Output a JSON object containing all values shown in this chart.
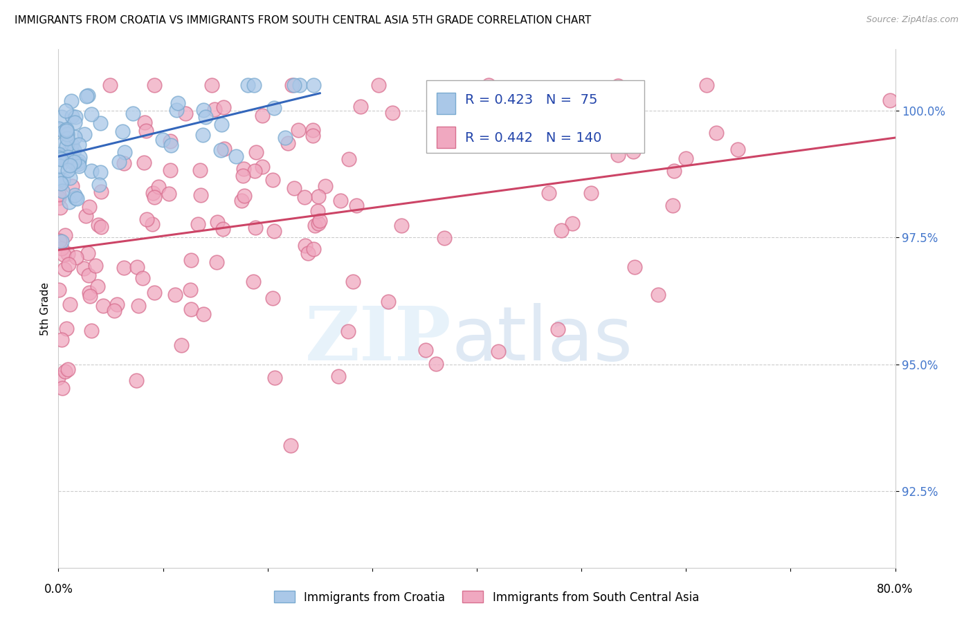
{
  "title": "IMMIGRANTS FROM CROATIA VS IMMIGRANTS FROM SOUTH CENTRAL ASIA 5TH GRADE CORRELATION CHART",
  "source": "Source: ZipAtlas.com",
  "ylabel": "5th Grade",
  "x_min": 0.0,
  "x_max": 80.0,
  "y_min": 91.0,
  "y_max": 101.2,
  "croatia_R": 0.423,
  "croatia_N": 75,
  "sca_R": 0.442,
  "sca_N": 140,
  "croatia_color": "#aac8e8",
  "croatia_edge": "#7aaad0",
  "sca_color": "#f0a8c0",
  "sca_edge": "#d87090",
  "croatia_line_color": "#3366bb",
  "sca_line_color": "#cc4466",
  "legend_color": "#2244aa",
  "title_fontsize": 11,
  "source_fontsize": 9,
  "legend_fontsize": 14,
  "axis_tick_color": "#4477cc",
  "grid_color": "#cccccc"
}
